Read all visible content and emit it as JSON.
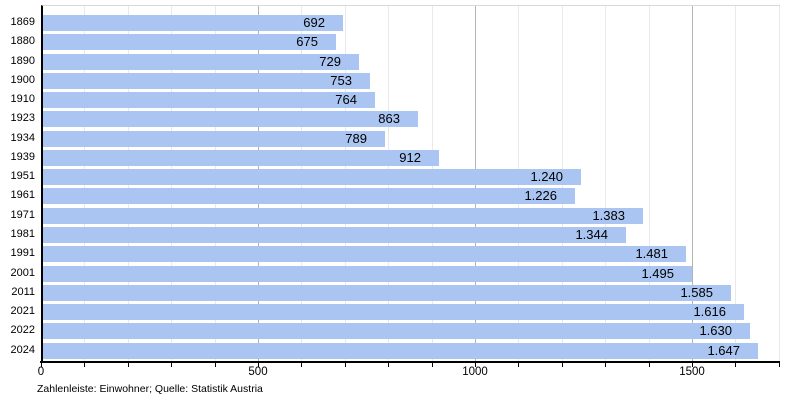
{
  "chart_data": {
    "type": "bar",
    "orientation": "horizontal",
    "title": "",
    "xlabel": "",
    "ylabel": "",
    "categories": [
      "1869",
      "1880",
      "1890",
      "1900",
      "1910",
      "1923",
      "1934",
      "1939",
      "1951",
      "1961",
      "1971",
      "1981",
      "1991",
      "2001",
      "2011",
      "2021",
      "2022",
      "2024"
    ],
    "values": [
      692,
      675,
      729,
      753,
      764,
      863,
      789,
      912,
      1240,
      1226,
      1383,
      1344,
      1481,
      1495,
      1585,
      1616,
      1630,
      1647
    ],
    "value_labels": [
      "692",
      "675",
      "729",
      "753",
      "764",
      "863",
      "789",
      "912",
      "1.240",
      "1.226",
      "1.383",
      "1.344",
      "1.481",
      "1.495",
      "1.585",
      "1.616",
      "1.630",
      "1.647"
    ],
    "xlim": [
      0,
      1700
    ],
    "x_major_ticks": [
      0,
      500,
      1000,
      1500
    ],
    "x_major_tick_labels": [
      "0",
      "500",
      "1000",
      "1500"
    ],
    "x_minor_tick_step": 100,
    "grid": "vertical, minor every 100, major every 500",
    "legend": "none",
    "bar_color": "#aac5f2",
    "minor_grid_color": "#e9e9e9",
    "major_grid_color": "#b3b3b3",
    "axis_color": "#000000",
    "caption": "Zahlenleiste: Einwohner; Quelle: Statistik Austria"
  }
}
